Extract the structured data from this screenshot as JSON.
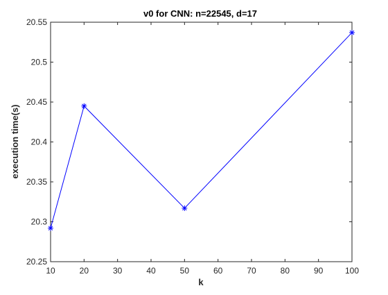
{
  "chart_data": {
    "type": "line",
    "title": "v0 for CNN: n=22545, d=17",
    "xlabel": "k",
    "ylabel": "execution time(s)",
    "xlim": [
      10,
      100
    ],
    "ylim": [
      20.25,
      20.55
    ],
    "xticks": [
      "10",
      "20",
      "30",
      "40",
      "50",
      "60",
      "70",
      "80",
      "90",
      "100"
    ],
    "yticks": [
      "20.25",
      "20.3",
      "20.35",
      "20.4",
      "20.45",
      "20.5",
      "20.55"
    ],
    "grid": false,
    "series": [
      {
        "color": "#0000ff",
        "marker": "asterisk",
        "x": [
          10,
          20,
          50,
          100
        ],
        "y": [
          20.292,
          20.445,
          20.317,
          20.537
        ]
      }
    ]
  }
}
